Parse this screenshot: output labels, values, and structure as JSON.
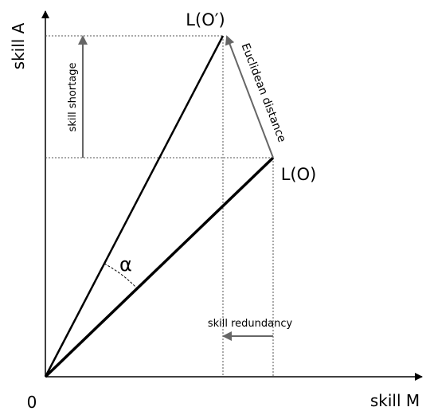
{
  "axes": {
    "y_label": "skill A",
    "x_label": "skill M",
    "origin": "0"
  },
  "points": {
    "target": "L(O′)",
    "current": "L(O)"
  },
  "annotations": {
    "distance": "Euclidean distance",
    "shortage": "skill shortage",
    "redundancy": "skill redundancy",
    "angle": "α"
  }
}
